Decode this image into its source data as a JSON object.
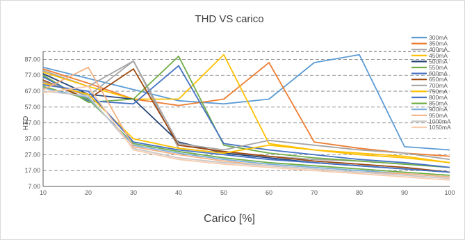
{
  "chart_data": {
    "type": "line",
    "title": "THD VS carico",
    "xlabel": "Carico [%]",
    "ylabel": "HTD",
    "x": [
      10,
      20,
      30,
      40,
      50,
      60,
      70,
      80,
      90,
      100
    ],
    "x_ticks": [
      "10",
      "20",
      "30",
      "40",
      "50",
      "60",
      "70",
      "80",
      "90",
      "100"
    ],
    "y_ticks": [
      "7.00",
      "17.00",
      "27.00",
      "37.00",
      "47.00",
      "57.00",
      "67.00",
      "77.00",
      "87.00"
    ],
    "ylim": [
      7,
      92
    ],
    "grid": "horizontal dashed",
    "legend_position": "right",
    "series": [
      {
        "name": "300mA",
        "color": "#5b9bd5",
        "values": [
          82,
          75,
          68,
          61,
          59,
          62,
          85,
          90,
          32,
          30
        ]
      },
      {
        "name": "350mA",
        "color": "#ed7d31",
        "values": [
          81,
          72,
          62,
          58,
          62,
          85,
          35,
          31,
          28,
          26
        ]
      },
      {
        "name": "400mA",
        "color": "#a5a5a5",
        "values": [
          80,
          70,
          86,
          31,
          28,
          26,
          24,
          23,
          21,
          19
        ]
      },
      {
        "name": "450mA",
        "color": "#ffc000",
        "values": [
          79,
          70,
          62,
          62,
          90,
          34,
          30,
          27,
          25,
          22
        ]
      },
      {
        "name": "500mA",
        "color": "#264478",
        "values": [
          78,
          65,
          62,
          35,
          28,
          25,
          22,
          20,
          18,
          16
        ]
      },
      {
        "name": "550mA",
        "color": "#70ad47",
        "values": [
          77,
          60,
          62,
          89,
          33,
          28,
          25,
          23,
          21,
          19
        ]
      },
      {
        "name": "600mA",
        "color": "#4472c4",
        "values": [
          76,
          61,
          59,
          83,
          34,
          30,
          27,
          24,
          22,
          19
        ]
      },
      {
        "name": "650mA",
        "color": "#9e480e",
        "values": [
          74,
          62,
          81,
          33,
          29,
          26,
          23,
          21,
          19,
          16
        ]
      },
      {
        "name": "700mA",
        "color": "#a5a5a5",
        "values": [
          73,
          64,
          86,
          34,
          30,
          36,
          33,
          30,
          28,
          24
        ]
      },
      {
        "name": "750mA",
        "color": "#ffc000",
        "values": [
          72,
          65,
          37,
          31,
          28,
          33,
          30,
          28,
          26,
          22
        ]
      },
      {
        "name": "800mA",
        "color": "#4472c4",
        "values": [
          71,
          67,
          35,
          30,
          27,
          24,
          22,
          20,
          18,
          16
        ]
      },
      {
        "name": "850mA",
        "color": "#70ad47",
        "values": [
          70,
          62,
          34,
          29,
          25,
          22,
          20,
          18,
          16,
          14
        ]
      },
      {
        "name": "900mA",
        "color": "#7cafdd",
        "values": [
          69,
          63,
          33,
          28,
          24,
          21,
          19,
          17,
          15,
          13
        ]
      },
      {
        "name": "950mA",
        "color": "#f4b183",
        "values": [
          68,
          82,
          32,
          27,
          23,
          20,
          18,
          16,
          15,
          13
        ]
      },
      {
        "name": "1000mA",
        "color": "#c9c9c9",
        "values": [
          67,
          64,
          31,
          25,
          22,
          20,
          18,
          16,
          14,
          12
        ]
      },
      {
        "name": "1050mA",
        "color": "#f8cbad",
        "values": [
          66,
          70,
          30,
          24,
          21,
          19,
          17,
          15,
          13,
          11
        ]
      }
    ]
  }
}
